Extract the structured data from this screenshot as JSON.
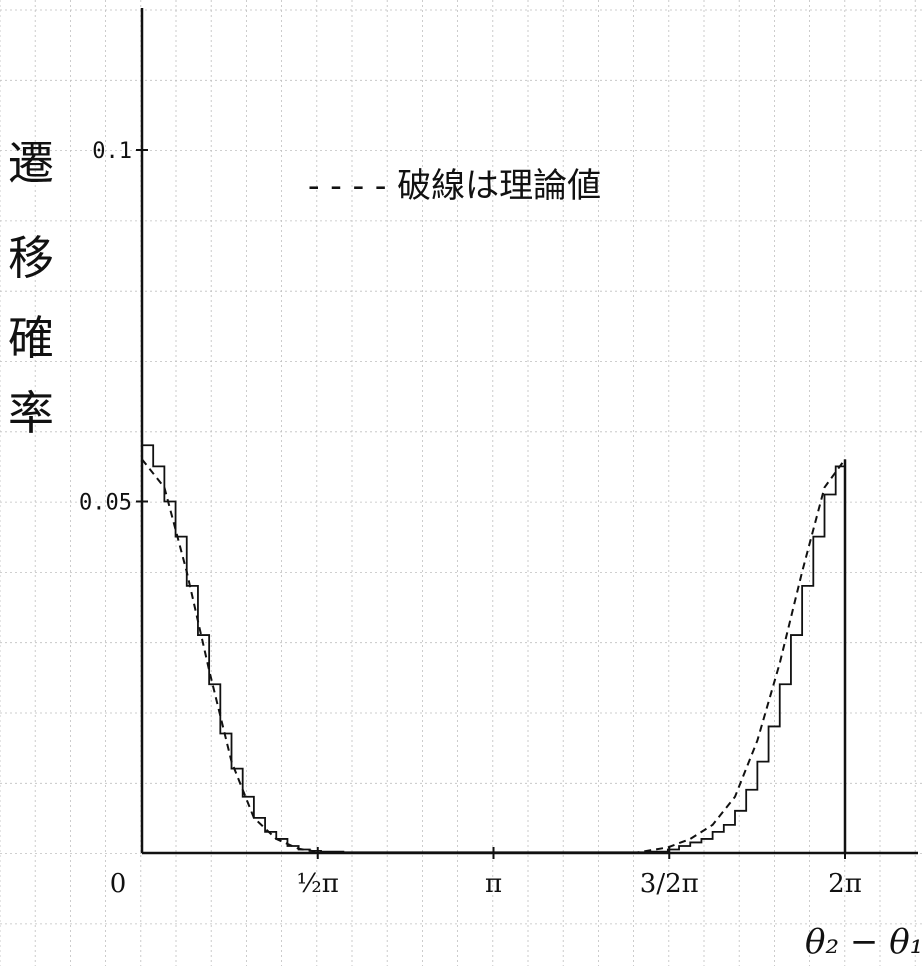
{
  "chart_data": {
    "type": "line",
    "ylabel": "遷移確率",
    "xlabel": "θ₂ − θ₁",
    "annotation": "- - - - 破線は理論値",
    "x_tick_labels": [
      "0",
      "½π",
      "π",
      "3/2π",
      "2π"
    ],
    "x_tick_values": [
      0,
      1.5708,
      3.1416,
      4.7124,
      6.2832
    ],
    "y_tick_labels": [
      "0.1",
      "0.05"
    ],
    "y_tick_values": [
      0.1,
      0.05
    ],
    "xlim": [
      0,
      6.2832
    ],
    "ylim": [
      0,
      0.1
    ],
    "grid": true,
    "series": [
      {
        "style": "histogram",
        "x": [
          0.0,
          0.1,
          0.2,
          0.3,
          0.4,
          0.5,
          0.6,
          0.7,
          0.8,
          0.9,
          1.0,
          1.1,
          1.2,
          1.3,
          1.4,
          1.5,
          1.6,
          1.8,
          2.0,
          2.5,
          3.0,
          3.5,
          4.0,
          4.5,
          4.7,
          4.8,
          4.9,
          5.0,
          5.1,
          5.2,
          5.3,
          5.4,
          5.5,
          5.6,
          5.7,
          5.8,
          5.9,
          6.0,
          6.1,
          6.2,
          6.2832
        ],
        "values": [
          0.058,
          0.055,
          0.05,
          0.045,
          0.038,
          0.031,
          0.024,
          0.017,
          0.012,
          0.008,
          0.005,
          0.003,
          0.002,
          0.001,
          0.0005,
          0.0003,
          0.0002,
          0.0001,
          0.0001,
          0.0001,
          0.0001,
          0.0001,
          0.0001,
          0.0002,
          0.0005,
          0.001,
          0.0015,
          0.002,
          0.003,
          0.004,
          0.006,
          0.009,
          0.013,
          0.018,
          0.024,
          0.031,
          0.038,
          0.045,
          0.051,
          0.055,
          0.056
        ]
      },
      {
        "style": "dashed",
        "x": [
          0.0,
          0.2,
          0.4,
          0.6,
          0.8,
          1.0,
          1.2,
          1.4,
          1.6,
          2.0,
          3.1416,
          4.4,
          4.7,
          4.9,
          5.1,
          5.3,
          5.5,
          5.7,
          5.9,
          6.1,
          6.2832
        ],
        "values": [
          0.056,
          0.052,
          0.04,
          0.026,
          0.013,
          0.005,
          0.002,
          0.0006,
          0.0001,
          0.0,
          0.0,
          0.0,
          0.0008,
          0.002,
          0.004,
          0.008,
          0.016,
          0.027,
          0.04,
          0.052,
          0.056
        ]
      }
    ]
  }
}
